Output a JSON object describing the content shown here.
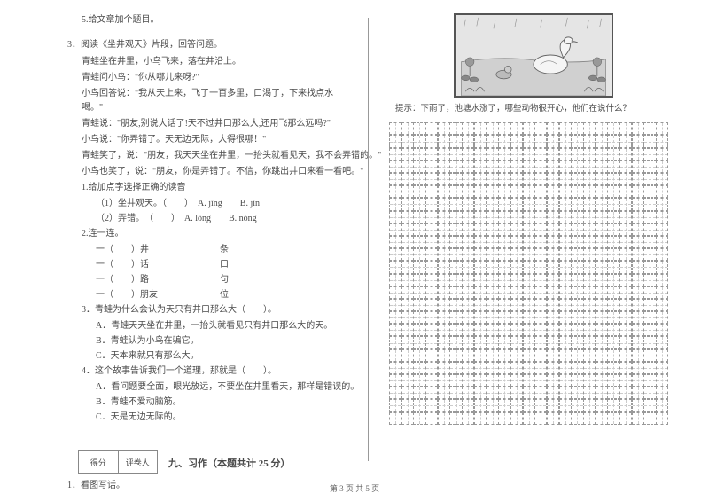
{
  "left": {
    "q5": "5.给文章加个题目。",
    "q3_head": "3．阅读《坐井观天》片段，回答问题。",
    "passage": [
      "青蛙坐在井里，小鸟飞来，落在井沿上。",
      "青蛙问小鸟：\"你从哪儿来呀?\"",
      "小鸟回答说：\"我从天上来，飞了一百多里，口渴了，下来找点水喝。\"",
      "青蛙说：\"朋友,别说大话了!天不过井口那么大,还用飞那么远吗?\"",
      "小鸟说：\"你弄错了。天无边无际，大得很哪！\"",
      "青蛙笑了，说：\"朋友，我天天坐在井里，一抬头就看见天，我不会弄错的。\"",
      "小鸟也笑了，说：\"朋友，你是弄错了。不信，你跳出井口来看一看吧。\""
    ],
    "sub1": "1.给加点字选择正确的读音",
    "sub1_a": "（1）坐井观天。（　　）　A. jīng　　B. jǐn",
    "sub1_b": "（2）弄错。　（　　）　A. lōng　　B. nòng",
    "sub2": "2.连一连。",
    "match": [
      "一（　　）井　　　　　　　　条",
      "一（　　）话　　　　　　　　口",
      "一（　　）路　　　　　　　　句",
      "一（　　）朋友　　　　　　　位"
    ],
    "sub3": "3．青蛙为什么会认为天只有井口那么大（　　）。",
    "sub3_opts": [
      "A．青蛙天天坐在井里，一抬头就看见只有井口那么大的天。",
      "B．青蛙认为小鸟在骗它。",
      "C．天本来就只有那么大。"
    ],
    "sub4": "4．这个故事告诉我们一个道理，那就是（　　）。",
    "sub4_opts": [
      "A．看问题要全面，眼光放远，不要坐在井里看天，那样是错误的。",
      "B．青蛙不爱动脑筋。",
      "C．天是无边无际的。"
    ],
    "score_l": "得分",
    "score_r": "评卷人",
    "section": "九、习作（本题共计 25 分）",
    "q1": "1．看图写话。"
  },
  "right": {
    "hint": "提示：下雨了，池塘水涨了，哪些动物很开心，他们在说什么？"
  },
  "footer": "第 3 页 共 5 页",
  "grid": {
    "rows": 24,
    "cols": 23
  }
}
